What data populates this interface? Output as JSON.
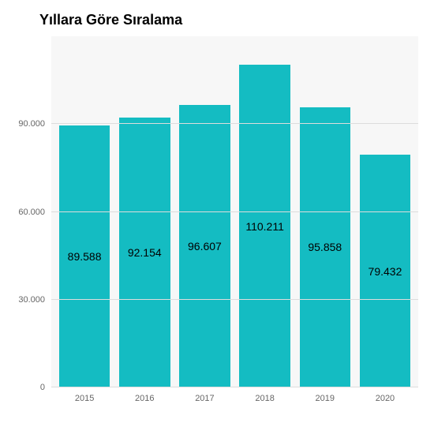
{
  "chart": {
    "type": "bar",
    "title": "Yıllara Göre Sıralama",
    "title_fontsize": 18,
    "title_fontweight": "bold",
    "title_color": "#000000",
    "categories": [
      "2015",
      "2016",
      "2017",
      "2018",
      "2019",
      "2020"
    ],
    "values": [
      89588,
      92154,
      96607,
      110211,
      95858,
      79432
    ],
    "bar_labels": [
      "89.588",
      "92.154",
      "96.607",
      "110.211",
      "95.858",
      "79.432"
    ],
    "bar_color": "#14bcc2",
    "bar_label_color": "#000000",
    "bar_label_fontsize": 14,
    "ylim": [
      0,
      120000
    ],
    "yticks": [
      0,
      30000,
      60000,
      90000
    ],
    "ytick_labels": [
      "0",
      "30.000",
      "60.000",
      "90.000"
    ],
    "tick_fontsize": 11,
    "tick_color": "#666666",
    "plot_background": "#f7f7f7",
    "grid_color": "#dddddd",
    "page_background": "#ffffff",
    "bar_width_ratio": 0.92
  }
}
